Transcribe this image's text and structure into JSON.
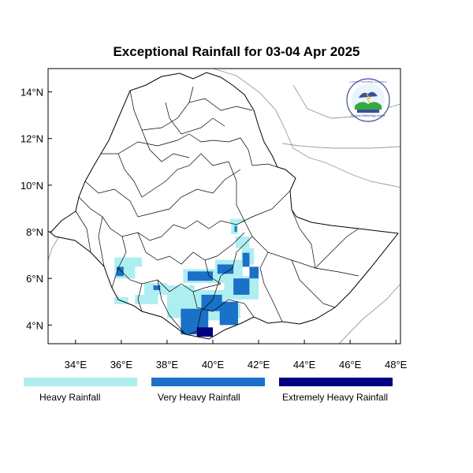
{
  "title": "Exceptional Rainfall for 03-04 Apr 2025",
  "axes": {
    "lon_min": 32.8,
    "lon_max": 48.2,
    "lat_min": 3.2,
    "lat_max": 15.0,
    "x_ticks": [
      {
        "value": 34,
        "label": "34°E"
      },
      {
        "value": 36,
        "label": "36°E"
      },
      {
        "value": 38,
        "label": "38°E"
      },
      {
        "value": 40,
        "label": "40°E"
      },
      {
        "value": 42,
        "label": "42°E"
      },
      {
        "value": 44,
        "label": "44°E"
      },
      {
        "value": 46,
        "label": "46°E"
      },
      {
        "value": 48,
        "label": "48°E"
      }
    ],
    "y_ticks": [
      {
        "value": 4,
        "label": "4°N"
      },
      {
        "value": 6,
        "label": "6°N"
      },
      {
        "value": 8,
        "label": "8°N"
      },
      {
        "value": 10,
        "label": "10°N"
      },
      {
        "value": 12,
        "label": "12°N"
      },
      {
        "value": 14,
        "label": "14°N"
      }
    ]
  },
  "legend": [
    {
      "label": "Heavy Rainfall",
      "color": "#aeeef0"
    },
    {
      "label": "Very Heavy Rainfall",
      "color": "#1b70c8"
    },
    {
      "label": "Extremely Heavy Rainfall",
      "color": "#000080"
    }
  ],
  "logo": {
    "text_top": "ኢትዮጵያ ሚቲዎሮሎጂ ኢንስቲትዩት",
    "text_bottom": "Ethiopian Meteorology Institute"
  },
  "chart_data": {
    "type": "heatmap",
    "grid_step_deg": 0.25,
    "classes": [
      "Heavy Rainfall",
      "Very Heavy Rainfall",
      "Extremely Heavy Rainfall"
    ],
    "cells": [
      {
        "lon": 40.75,
        "lat": 8.4,
        "lon2": 41.4,
        "lat2": 8.55,
        "class": 0
      },
      {
        "lon": 40.8,
        "lat": 7.9,
        "lon2": 41.1,
        "lat2": 8.4,
        "class": 0
      },
      {
        "lon": 40.95,
        "lat": 8.0,
        "lon2": 41.05,
        "lat2": 8.25,
        "class": 1
      },
      {
        "lon": 41.0,
        "lat": 7.3,
        "lon2": 41.6,
        "lat2": 7.8,
        "class": 0
      },
      {
        "lon": 41.25,
        "lat": 6.6,
        "lon2": 41.8,
        "lat2": 7.3,
        "class": 0
      },
      {
        "lon": 41.3,
        "lat": 6.5,
        "lon2": 41.6,
        "lat2": 7.1,
        "class": 1
      },
      {
        "lon": 41.6,
        "lat": 6.0,
        "lon2": 42.0,
        "lat2": 6.5,
        "class": 1
      },
      {
        "lon": 40.1,
        "lat": 6.1,
        "lon2": 41.3,
        "lat2": 6.8,
        "class": 0
      },
      {
        "lon": 40.2,
        "lat": 6.2,
        "lon2": 40.9,
        "lat2": 6.6,
        "class": 1
      },
      {
        "lon": 40.5,
        "lat": 5.1,
        "lon2": 42.0,
        "lat2": 6.1,
        "class": 0
      },
      {
        "lon": 40.9,
        "lat": 5.3,
        "lon2": 41.6,
        "lat2": 6.0,
        "class": 1
      },
      {
        "lon": 38.7,
        "lat": 5.8,
        "lon2": 40.5,
        "lat2": 6.4,
        "class": 0
      },
      {
        "lon": 38.9,
        "lat": 5.9,
        "lon2": 40.0,
        "lat2": 6.3,
        "class": 1
      },
      {
        "lon": 38.0,
        "lat": 4.3,
        "lon2": 39.2,
        "lat2": 5.7,
        "class": 0
      },
      {
        "lon": 38.6,
        "lat": 3.6,
        "lon2": 39.8,
        "lat2": 4.7,
        "class": 1
      },
      {
        "lon": 39.2,
        "lat": 4.2,
        "lon2": 40.6,
        "lat2": 5.5,
        "class": 0
      },
      {
        "lon": 39.5,
        "lat": 4.6,
        "lon2": 40.4,
        "lat2": 5.3,
        "class": 1
      },
      {
        "lon": 40.3,
        "lat": 4.0,
        "lon2": 41.1,
        "lat2": 5.0,
        "class": 1
      },
      {
        "lon": 40.6,
        "lat": 4.3,
        "lon2": 41.2,
        "lat2": 4.9,
        "class": 0
      },
      {
        "lon": 39.3,
        "lat": 3.5,
        "lon2": 40.0,
        "lat2": 3.9,
        "class": 2
      },
      {
        "lon": 35.7,
        "lat": 6.0,
        "lon2": 36.6,
        "lat2": 6.9,
        "class": 0
      },
      {
        "lon": 35.8,
        "lat": 6.1,
        "lon2": 36.1,
        "lat2": 6.5,
        "class": 1
      },
      {
        "lon": 36.1,
        "lat": 6.5,
        "lon2": 36.9,
        "lat2": 6.9,
        "class": 0
      },
      {
        "lon": 37.0,
        "lat": 5.3,
        "lon2": 38.0,
        "lat2": 5.8,
        "class": 0
      },
      {
        "lon": 37.4,
        "lat": 5.5,
        "lon2": 37.7,
        "lat2": 5.7,
        "class": 1
      },
      {
        "lon": 36.6,
        "lat": 4.9,
        "lon2": 37.6,
        "lat2": 5.3,
        "class": 0
      },
      {
        "lon": 35.7,
        "lat": 4.9,
        "lon2": 36.3,
        "lat2": 5.2,
        "class": 0
      }
    ]
  }
}
